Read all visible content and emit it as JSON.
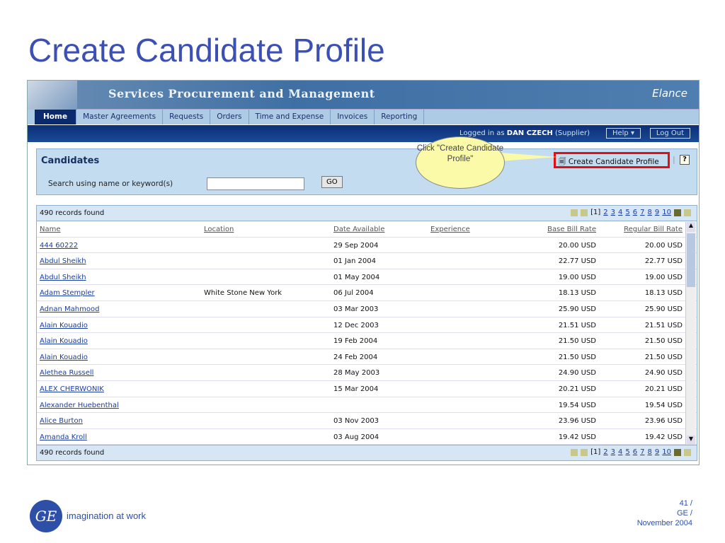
{
  "slide": {
    "title": "Create Candidate Profile",
    "tagline": "imagination at work",
    "logo": "GE",
    "page": "41 /",
    "org": "GE /",
    "date": "November 2004"
  },
  "app": {
    "title": "Services Procurement and Management",
    "brand": "Elance",
    "tabs": [
      "Home",
      "Master Agreements",
      "Requests",
      "Orders",
      "Time and Expense",
      "Invoices",
      "Reporting"
    ],
    "login_prefix": "Logged in as",
    "user": "DAN CZECH",
    "role": "(Supplier)",
    "help": "Help",
    "logout": "Log Out"
  },
  "candidates": {
    "heading": "Candidates",
    "search_label": "Search using name or keyword(s)",
    "search_value": "",
    "go": "GO",
    "create": "Create Candidate Profile",
    "help_icon": "?"
  },
  "callout": "Click \"Create Candidate Profile\"",
  "grid": {
    "records": "490 records found",
    "current_page": "[1]",
    "pages": [
      "2",
      "3",
      "4",
      "5",
      "6",
      "7",
      "8",
      "9",
      "10"
    ],
    "columns": [
      "Name",
      "Location",
      "Date Available",
      "Experience",
      "Base Bill Rate",
      "Regular Bill Rate"
    ],
    "rows": [
      [
        "444 60222",
        "",
        "29 Sep 2004",
        "",
        "20.00 USD",
        "20.00 USD"
      ],
      [
        "Abdul Sheikh",
        "",
        "01 Jan 2004",
        "",
        "22.77 USD",
        "22.77 USD"
      ],
      [
        "Abdul Sheikh",
        "",
        "01 May 2004",
        "",
        "19.00 USD",
        "19.00 USD"
      ],
      [
        "Adam Stempler",
        "White Stone New York",
        "06 Jul 2004",
        "",
        "18.13 USD",
        "18.13 USD"
      ],
      [
        "Adnan Mahmood",
        "",
        "03 Mar 2003",
        "",
        "25.90 USD",
        "25.90 USD"
      ],
      [
        "Alain Kouadio",
        "",
        "12 Dec 2003",
        "",
        "21.51 USD",
        "21.51 USD"
      ],
      [
        "Alain Kouadio",
        "",
        "19 Feb 2004",
        "",
        "21.50 USD",
        "21.50 USD"
      ],
      [
        "Alain Kouadio",
        "",
        "24 Feb 2004",
        "",
        "21.50 USD",
        "21.50 USD"
      ],
      [
        "Alethea Russell",
        "",
        "28 May 2003",
        "",
        "24.90 USD",
        "24.90 USD"
      ],
      [
        "ALEX CHERWONIK",
        "",
        "15 Mar 2004",
        "",
        "20.21 USD",
        "20.21 USD"
      ],
      [
        "Alexander Huebenthal",
        "",
        "",
        "",
        "19.54 USD",
        "19.54 USD"
      ],
      [
        "Alice Burton",
        "",
        "03 Nov 2003",
        "",
        "23.96 USD",
        "23.96 USD"
      ],
      [
        "Amanda Kroll",
        "",
        "03 Aug 2004",
        "",
        "19.42 USD",
        "19.42 USD"
      ]
    ]
  }
}
